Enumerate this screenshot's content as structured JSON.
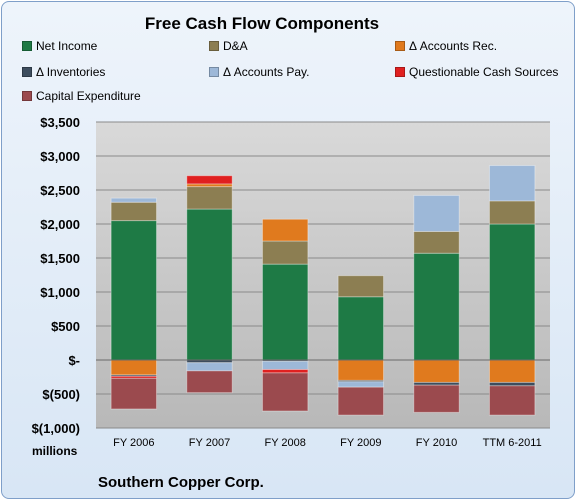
{
  "chart_data": {
    "type": "bar",
    "stacked": true,
    "title": "Free Cash Flow Components",
    "units_label": "millions",
    "company": "Southern Copper Corp.",
    "categories": [
      "FY 2006",
      "FY 2007",
      "FY 2008",
      "FY 2009",
      "FY 2010",
      "TTM 6-2011"
    ],
    "ylim": [
      -1000,
      3500
    ],
    "yticks": [
      -1000,
      -500,
      0,
      500,
      1000,
      1500,
      2000,
      2500,
      3000,
      3500
    ],
    "ytick_labels": [
      "$(1,000)",
      "$(500)",
      "$-",
      "$500",
      "$1,000",
      "$1,500",
      "$2,000",
      "$2,500",
      "$3,000",
      "$3,500"
    ],
    "grid": true,
    "legend_position": "top",
    "series": [
      {
        "name": "Net Income",
        "color": "#1e7a45",
        "values": [
          2050,
          2220,
          1410,
          930,
          1570,
          2000
        ]
      },
      {
        "name": "D&A",
        "color": "#8c7e52",
        "values": [
          270,
          330,
          340,
          310,
          320,
          340
        ]
      },
      {
        "name": "Δ Accounts Rec.",
        "color": "#e07a1e",
        "values": [
          -220,
          40,
          320,
          -300,
          -330,
          -330
        ]
      },
      {
        "name": "Δ Inventories",
        "color": "#3d4d5e",
        "values": [
          -20,
          -40,
          -20,
          -20,
          -40,
          -50
        ]
      },
      {
        "name": "Δ Accounts Pay.",
        "color": "#9db8d8",
        "values": [
          60,
          -120,
          -120,
          -80,
          530,
          520
        ]
      },
      {
        "name": "Questionable Cash Sources",
        "color": "#e02020",
        "values": [
          -30,
          120,
          -50,
          0,
          0,
          0
        ]
      },
      {
        "name": "Capital Expenditure",
        "color": "#9b4a4e",
        "values": [
          -450,
          -320,
          -560,
          -410,
          -400,
          -430
        ]
      }
    ]
  }
}
